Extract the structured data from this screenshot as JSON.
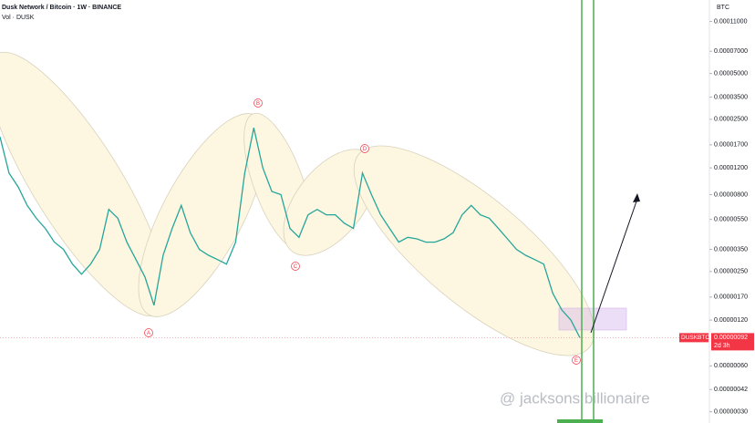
{
  "header": {
    "title": "Dusk Network / Bitcoin · 1W · BINANCE",
    "volume": "Vol · DUSK"
  },
  "chart_data": {
    "type": "line",
    "color": "#26a69a",
    "log_scale": true,
    "y_axis_label": "BTC",
    "values": [
      1.92e-05,
      1.11e-05,
      9e-06,
      6.8e-06,
      5.6e-06,
      4.8e-06,
      3.9e-06,
      3.5e-06,
      2.8e-06,
      2.4e-06,
      2.8e-06,
      3.5e-06,
      6.4e-06,
      5.6e-06,
      3.9e-06,
      3e-06,
      2.3e-06,
      1.5e-06,
      3.2e-06,
      4.8e-06,
      6.8e-06,
      4.5e-06,
      3.5e-06,
      3.2e-06,
      3e-06,
      2.8e-06,
      3.9e-06,
      1.1e-05,
      2.2e-05,
      1.2e-05,
      8.4e-06,
      8e-06,
      4.8e-06,
      4.2e-06,
      5.9e-06,
      6.4e-06,
      5.9e-06,
      5.9e-06,
      5.2e-06,
      4.8e-06,
      1.11e-05,
      8e-06,
      5.9e-06,
      4.8e-06,
      3.9e-06,
      4.2e-06,
      4.1e-06,
      3.9e-06,
      3.9e-06,
      4.1e-06,
      4.5e-06,
      5.9e-06,
      6.8e-06,
      5.9e-06,
      5.6e-06,
      4.8e-06,
      4.1e-06,
      3.5e-06,
      3.2e-06,
      3e-06,
      2.8e-06,
      1.8e-06,
      1.4e-06,
      1.2e-06,
      9.2e-07
    ],
    "ylim": [
      2.53e-07,
      0.000152
    ],
    "yticks": [
      {
        "value": 0.00011,
        "label": "0.00011000"
      },
      {
        "value": 7e-05,
        "label": "0.00007000"
      },
      {
        "value": 5e-05,
        "label": "0.00005000"
      },
      {
        "value": 3.5e-05,
        "label": "0.00003500"
      },
      {
        "value": 2.5e-05,
        "label": "0.00002500"
      },
      {
        "value": 1.7e-05,
        "label": "0.00001700"
      },
      {
        "value": 1.2e-05,
        "label": "0.00001200"
      },
      {
        "value": 8e-06,
        "label": "0.00000800"
      },
      {
        "value": 5.5e-06,
        "label": "0.00000550"
      },
      {
        "value": 3.5e-06,
        "label": "0.00000350"
      },
      {
        "value": 2.5e-06,
        "label": "0.00000250"
      },
      {
        "value": 1.7e-06,
        "label": "0.00000170"
      },
      {
        "value": 1.2e-06,
        "label": "0.00000120"
      },
      {
        "value": 6e-07,
        "label": "0.00000060"
      },
      {
        "value": 4.2e-07,
        "label": "0.00000042"
      },
      {
        "value": 3e-07,
        "label": "0.00000030"
      }
    ],
    "last_price": {
      "symbol": "DUSKBTC",
      "value": 9.2e-07,
      "label": "0.00000092",
      "countdown": "2d 3h"
    },
    "annotations": [
      "A",
      "B",
      "C",
      "D",
      "E"
    ]
  },
  "watermark": "@ jacksons billionaire"
}
